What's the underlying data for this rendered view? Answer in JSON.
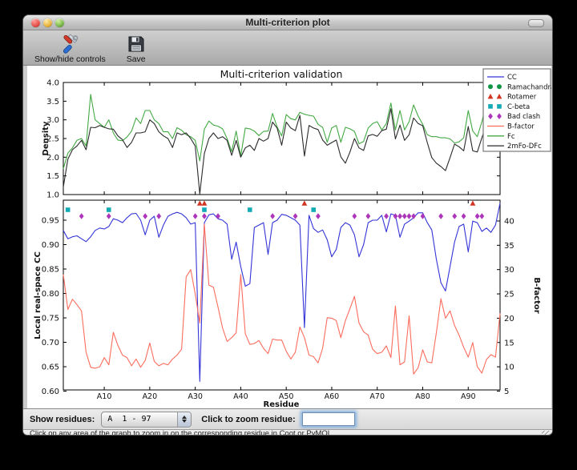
{
  "window": {
    "title": "Multi-criterion plot"
  },
  "toolbar": {
    "controls_label": "Show/hide controls",
    "save_label": "Save"
  },
  "controls": {
    "show_residues_label": "Show residues:",
    "residue_range_value": "A  1 - 97",
    "zoom_residue_label": "Click to zoom residue:",
    "zoom_input_value": ""
  },
  "status": {
    "message": "Click on any area of the graph to zoom in on the corresponding residue in Coot or PyMOL."
  },
  "colors": {
    "cc_line": "#3434d8",
    "ramachandran": "#129445",
    "rotamer": "#d33421",
    "cbeta": "#12aab5",
    "bad_clash": "#ad35ba",
    "bfactor_line": "#fb6d5d",
    "fc_line": "#44a944",
    "map_line": "#2a2a2a"
  },
  "legend": [
    {
      "label": "CC",
      "type": "line",
      "color": "#3434d8"
    },
    {
      "label": "Ramachandran",
      "type": "circle",
      "color": "#129445"
    },
    {
      "label": "Rotamer",
      "type": "triangle",
      "color": "#d33421"
    },
    {
      "label": "C-beta",
      "type": "square",
      "color": "#12aab5"
    },
    {
      "label": "Bad clash",
      "type": "diamond",
      "color": "#ad35ba"
    },
    {
      "label": "B-factor",
      "type": "line",
      "color": "#fb6d5d"
    },
    {
      "label": "Fc",
      "type": "line",
      "color": "#44a944"
    },
    {
      "label": "2mFo-DFc",
      "type": "line",
      "color": "#2a2a2a"
    }
  ],
  "chart_data": [
    {
      "type": "line",
      "title": "Multi-criterion validation",
      "ylabel": "Density",
      "ylim": [
        1.0,
        4.0
      ],
      "yticks": [
        1.0,
        1.5,
        2.0,
        2.5,
        3.0,
        3.5,
        4.0
      ],
      "x_range": [
        1,
        97
      ],
      "series": [
        {
          "name": "Fc",
          "color": "#44a944",
          "values": [
            1.69,
            2.11,
            2.25,
            2.45,
            2.5,
            2.3,
            3.68,
            3.0,
            2.9,
            2.8,
            3.0,
            2.65,
            2.46,
            2.44,
            2.54,
            2.7,
            3.05,
            2.9,
            3.25,
            3.25,
            3.0,
            2.9,
            2.68,
            2.68,
            2.5,
            2.79,
            2.72,
            2.6,
            2.55,
            2.45,
            1.9,
            2.75,
            2.97,
            2.86,
            2.83,
            2.76,
            2.5,
            2.15,
            2.7,
            2.03,
            2.78,
            2.76,
            2.7,
            2.58,
            2.69,
            2.7,
            3.17,
            2.81,
            2.57,
            3.14,
            3.03,
            3.0,
            3.2,
            3.15,
            3.12,
            3.1,
            2.88,
            2.8,
            2.4,
            2.78,
            2.85,
            2.4,
            2.8,
            2.76,
            2.69,
            2.36,
            2.42,
            2.78,
            2.9,
            2.95,
            2.73,
            2.9,
            3.45,
            2.73,
            3.25,
            2.73,
            2.95,
            3.4,
            3.1,
            2.88,
            2.6,
            2.55,
            2.55,
            2.52,
            2.52,
            2.49,
            2.38,
            2.41,
            2.52,
            3.25,
            2.7,
            2.55,
            2.95,
            3.45,
            3.4,
            3.1,
            3.2
          ]
        },
        {
          "name": "2mFo-DFc",
          "color": "#2a2a2a",
          "values": [
            1.2,
            1.95,
            2.2,
            2.3,
            2.45,
            2.2,
            2.8,
            2.79,
            2.85,
            2.8,
            2.76,
            2.75,
            2.57,
            2.47,
            2.26,
            2.4,
            2.65,
            2.65,
            2.68,
            3.0,
            2.9,
            2.68,
            2.57,
            2.5,
            2.26,
            2.65,
            2.6,
            2.65,
            2.5,
            2.3,
            1.02,
            2.1,
            2.5,
            2.65,
            2.5,
            2.55,
            2.45,
            2.05,
            2.45,
            2.0,
            2.25,
            2.32,
            2.18,
            2.5,
            2.43,
            2.5,
            2.94,
            2.78,
            2.32,
            2.94,
            2.78,
            2.71,
            3.12,
            2.03,
            2.85,
            2.78,
            2.74,
            2.46,
            2.32,
            2.39,
            2.46,
            2.01,
            1.84,
            2.14,
            2.5,
            2.25,
            2.18,
            2.57,
            2.61,
            2.56,
            2.71,
            2.75,
            3.3,
            2.49,
            2.86,
            2.45,
            2.6,
            3.05,
            2.9,
            2.84,
            2.39,
            1.99,
            1.84,
            1.75,
            1.64,
            1.99,
            2.35,
            2.28,
            2.17,
            2.82,
            2.17,
            2.14,
            2.52,
            2.88,
            2.9,
            2.75,
            2.95
          ]
        }
      ]
    },
    {
      "type": "line",
      "xlabel": "Residue",
      "ylabel_left": "Local real-space CC",
      "ylabel_right": "B-factor",
      "ylim_left": [
        0.6,
        0.99
      ],
      "ylim_right": [
        5,
        44
      ],
      "yticks_left": [
        0.6,
        0.65,
        0.7,
        0.75,
        0.8,
        0.85,
        0.9,
        0.95
      ],
      "yticks_right": [
        5,
        10,
        15,
        20,
        25,
        30,
        35,
        40
      ],
      "xtick_labels": [
        "A10",
        "A20",
        "A30",
        "A40",
        "A50",
        "A60",
        "A70",
        "A80",
        "A90"
      ],
      "xtick_residues": [
        10,
        20,
        30,
        40,
        50,
        60,
        70,
        80,
        90
      ],
      "x_range": [
        1,
        97
      ],
      "series": [
        {
          "name": "CC",
          "axis": "left",
          "color": "#3434d8",
          "values": [
            0.929,
            0.912,
            0.916,
            0.918,
            0.912,
            0.906,
            0.916,
            0.929,
            0.934,
            0.932,
            0.937,
            0.953,
            0.95,
            0.945,
            0.955,
            0.963,
            0.964,
            0.95,
            0.92,
            0.95,
            0.958,
            0.915,
            0.94,
            0.958,
            0.963,
            0.966,
            0.963,
            0.955,
            0.942,
            0.945,
            0.62,
            0.945,
            0.961,
            0.963,
            0.953,
            0.95,
            0.942,
            0.87,
            0.905,
            0.855,
            0.815,
            0.82,
            0.935,
            0.94,
            0.945,
            0.88,
            0.945,
            0.95,
            0.962,
            0.96,
            0.955,
            0.95,
            0.94,
            0.73,
            0.96,
            0.933,
            0.925,
            0.93,
            0.91,
            0.875,
            0.89,
            0.935,
            0.945,
            0.94,
            0.92,
            0.875,
            0.9,
            0.945,
            0.95,
            0.95,
            0.96,
            0.926,
            0.963,
            0.96,
            0.915,
            0.942,
            0.948,
            0.955,
            0.965,
            0.965,
            0.945,
            0.93,
            0.87,
            0.822,
            0.805,
            0.855,
            0.905,
            0.937,
            0.942,
            0.885,
            0.948,
            0.945,
            0.927,
            0.934,
            0.925,
            0.94,
            0.985
          ]
        },
        {
          "name": "B-factor",
          "axis": "right",
          "color": "#fb6d5d",
          "values": [
            29.0,
            21.8,
            23.9,
            22.8,
            21.5,
            13.0,
            9.9,
            9.7,
            10.0,
            11.9,
            10.4,
            17.1,
            14.4,
            12.4,
            11.9,
            10.2,
            11.6,
            9.9,
            11.3,
            14.9,
            11.1,
            10.2,
            10.7,
            10.4,
            11.6,
            12.4,
            13.6,
            28.5,
            30.0,
            25.0,
            19.0,
            39.3,
            26.8,
            26.4,
            22.3,
            18.0,
            15.2,
            16.0,
            17.0,
            29.0,
            16.8,
            14.6,
            14.8,
            15.4,
            13.8,
            12.7,
            15.7,
            15.5,
            15.5,
            13.2,
            11.6,
            13.0,
            18.2,
            16.0,
            12.4,
            12.1,
            10.8,
            13.8,
            20.1,
            20.0,
            19.5,
            16.0,
            19.5,
            22.0,
            24.5,
            19.0,
            17.2,
            16.5,
            13.6,
            12.7,
            13.0,
            14.3,
            11.9,
            22.5,
            10.4,
            11.0,
            20.5,
            8.5,
            9.8,
            13.5,
            11.0,
            10.8,
            17.0,
            24.0,
            20.0,
            21.5,
            18.5,
            16.5,
            14.0,
            12.0,
            15.0,
            10.0,
            8.7,
            11.5,
            12.5,
            12.0,
            21.0
          ]
        }
      ],
      "markers": [
        {
          "name": "Ramachandran",
          "shape": "circle",
          "color": "#129445",
          "residues": []
        },
        {
          "name": "Rotamer",
          "shape": "triangle",
          "color": "#d33421",
          "residues": [
            31,
            32,
            54,
            91
          ]
        },
        {
          "name": "C-beta",
          "shape": "square",
          "color": "#12aab5",
          "residues": [
            2,
            11,
            32,
            42,
            56
          ]
        },
        {
          "name": "Bad clash",
          "shape": "diamond",
          "color": "#ad35ba",
          "residues": [
            5,
            11,
            19,
            22,
            30,
            32,
            35,
            47,
            52,
            57,
            65,
            68,
            72,
            74,
            75,
            76,
            77,
            78,
            80,
            84,
            87,
            89,
            92,
            93
          ]
        }
      ]
    }
  ]
}
